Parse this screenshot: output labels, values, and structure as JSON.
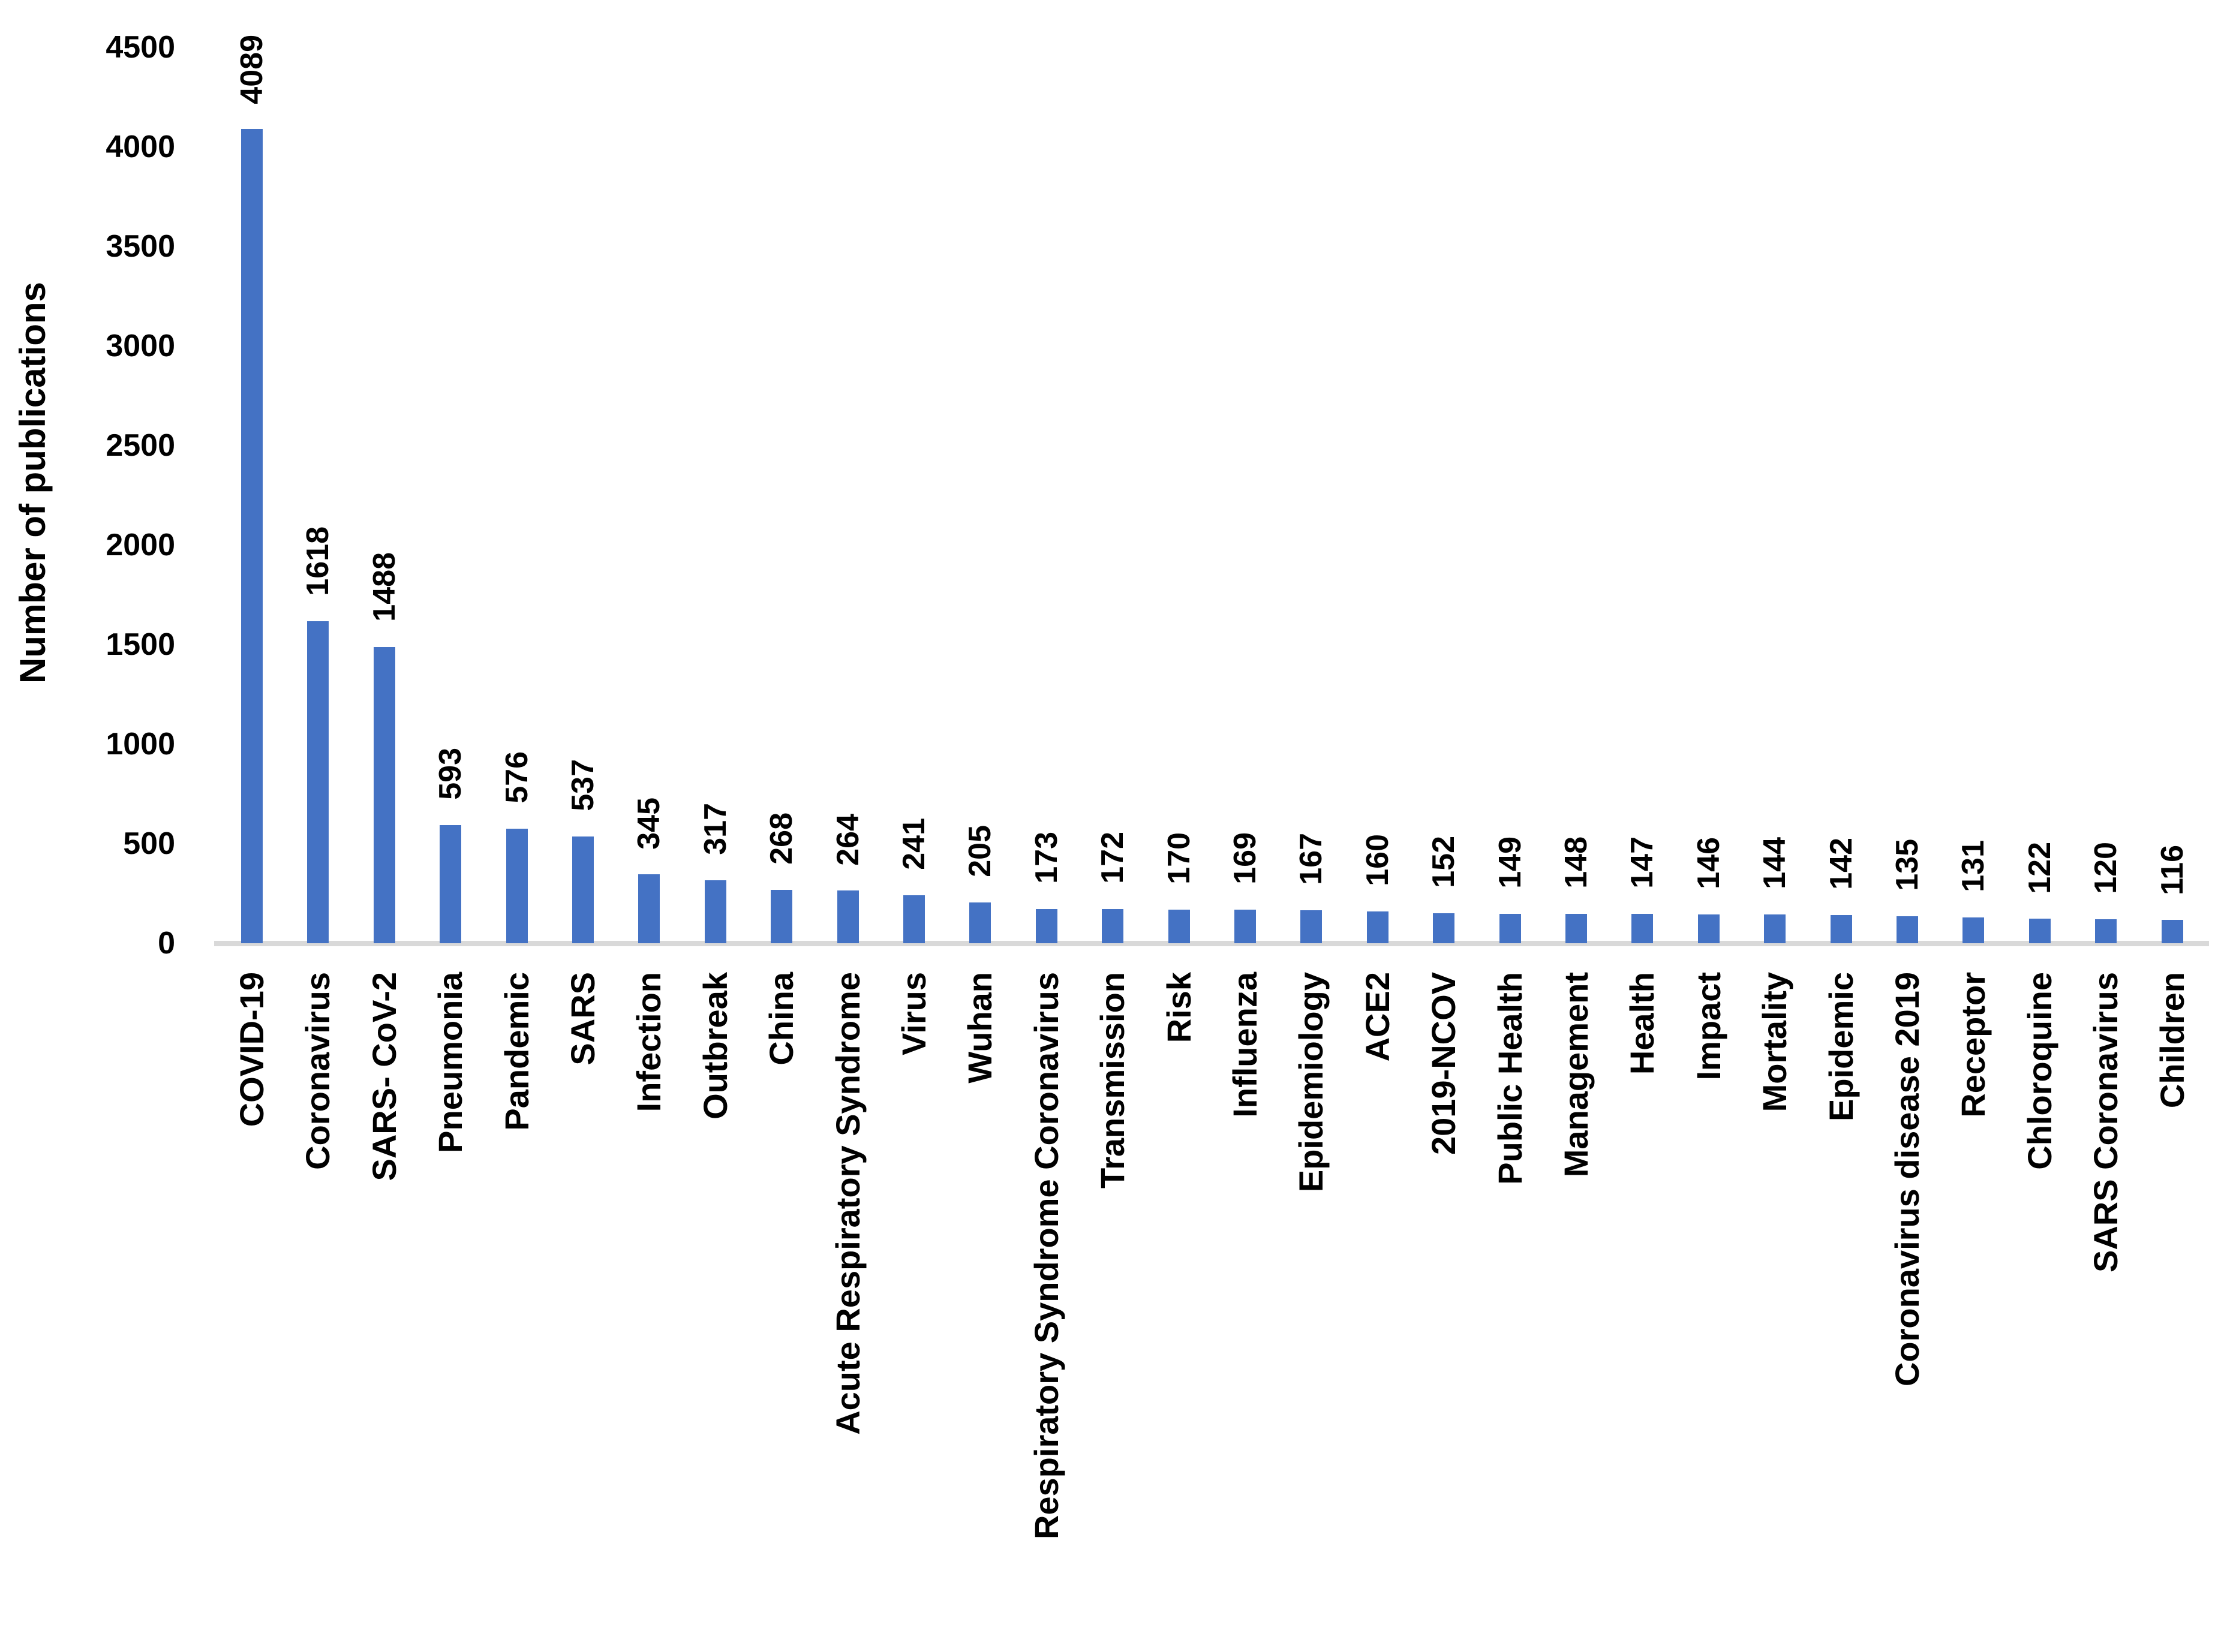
{
  "chart_data": {
    "type": "bar",
    "title": "",
    "xlabel": "",
    "ylabel": "Number of publications",
    "ylim": [
      0,
      4500
    ],
    "yticks": [
      0,
      500,
      1000,
      1500,
      2000,
      2500,
      3000,
      3500,
      4000,
      4500
    ],
    "grid": false,
    "legend_position": "none",
    "bar_color": "#4472C4",
    "axis_line_color": "#D9D9D9",
    "text_color": "#000000",
    "categories": [
      "COVID-19",
      "Coronavirus",
      "SARS- CoV-2",
      "Pneumonia",
      "Pandemic",
      "SARS",
      "Infection",
      "Outbreak",
      "China",
      "Acute Respiratory Syndrome",
      "Virus",
      "Wuhan",
      "Respiratory Syndrome Coronavirus",
      "Transmission",
      "Risk",
      "Influenza",
      "Epidemiology",
      "ACE2",
      "2019-NCOV",
      "Public Health",
      "Management",
      "Health",
      "Impact",
      "Mortality",
      "Epidemic",
      "Coronavirus disease 2019",
      "Receptor",
      "Chloroquine",
      "SARS Coronavirus",
      "Children"
    ],
    "values": [
      4089,
      1618,
      1488,
      593,
      576,
      537,
      345,
      317,
      268,
      264,
      241,
      205,
      173,
      172,
      170,
      169,
      167,
      160,
      152,
      149,
      148,
      147,
      146,
      144,
      142,
      135,
      131,
      122,
      120,
      116
    ]
  }
}
